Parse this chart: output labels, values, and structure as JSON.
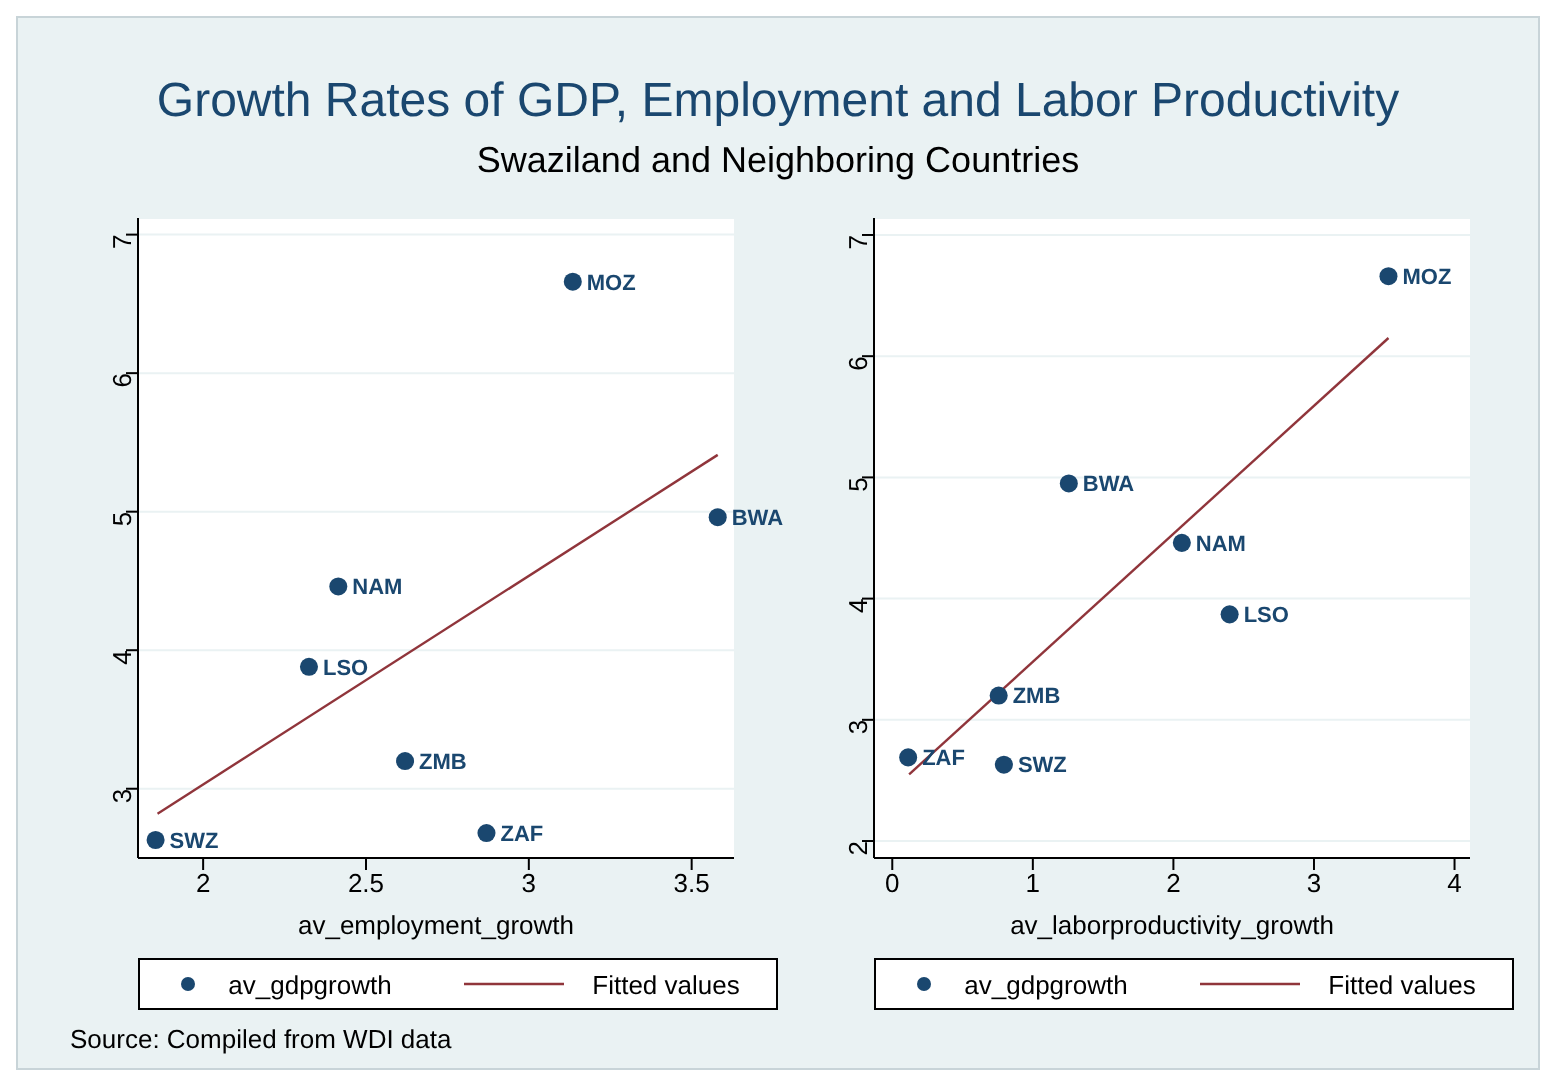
{
  "chart_data": [
    {
      "type": "scatter",
      "title": "Growth Rates of GDP, Employment and Labor Productivity",
      "subtitle": "Swaziland and Neighboring Countries",
      "xlabel": "av_employment_growth",
      "xlim": [
        1.8,
        3.63
      ],
      "xticks": [
        2,
        2.5,
        3,
        3.5
      ],
      "ylim": [
        2.5,
        7.12
      ],
      "yticks": [
        3,
        4,
        5,
        6,
        7
      ],
      "grid": "y",
      "legend": "bottom",
      "series": [
        {
          "name": "av_gdpgrowth",
          "marker": "circle",
          "color": "#1a476f",
          "x": [
            1.854,
            2.415,
            2.325,
            2.62,
            2.87,
            3.135,
            3.58
          ],
          "values": [
            2.63,
            4.46,
            3.88,
            3.2,
            2.68,
            6.66,
            4.96
          ]
        },
        {
          "name": "Fitted values",
          "type": "line",
          "color": "#90353b",
          "x": [
            1.86,
            3.58
          ],
          "values": [
            2.82,
            5.41
          ]
        }
      ],
      "annotations": [
        {
          "text": "SWZ",
          "x": 1.854,
          "y": 2.63
        },
        {
          "text": "NAM",
          "x": 2.415,
          "y": 4.46
        },
        {
          "text": "LSO",
          "x": 2.325,
          "y": 3.88
        },
        {
          "text": "ZMB",
          "x": 2.62,
          "y": 3.2
        },
        {
          "text": "ZAF",
          "x": 2.87,
          "y": 2.68
        },
        {
          "text": "MOZ",
          "x": 3.135,
          "y": 6.66
        },
        {
          "text": "BWA",
          "x": 3.58,
          "y": 4.96
        }
      ]
    },
    {
      "type": "scatter",
      "xlabel": "av_laborproductivity_growth",
      "xlim": [
        -0.13,
        4.11
      ],
      "xticks": [
        0,
        1,
        2,
        3,
        4
      ],
      "ylim": [
        1.86,
        7.14
      ],
      "yticks": [
        2,
        3,
        4,
        5,
        6,
        7
      ],
      "grid": "y",
      "legend": "bottom",
      "series": [
        {
          "name": "av_gdpgrowth",
          "marker": "circle",
          "color": "#1a476f",
          "x": [
            3.53,
            1.256,
            2.06,
            2.4,
            0.757,
            0.113,
            0.794
          ],
          "values": [
            6.66,
            4.95,
            4.46,
            3.87,
            3.2,
            2.69,
            2.63
          ]
        },
        {
          "name": "Fitted values",
          "type": "line",
          "color": "#90353b",
          "x": [
            0.12,
            3.53
          ],
          "values": [
            2.55,
            6.15
          ]
        }
      ],
      "annotations": [
        {
          "text": "MOZ",
          "x": 3.53,
          "y": 6.66
        },
        {
          "text": "BWA",
          "x": 1.256,
          "y": 4.95
        },
        {
          "text": "NAM",
          "x": 2.06,
          "y": 4.46
        },
        {
          "text": "LSO",
          "x": 2.4,
          "y": 3.87
        },
        {
          "text": "ZMB",
          "x": 0.757,
          "y": 3.2
        },
        {
          "text": "ZAF",
          "x": 0.113,
          "y": 2.69
        },
        {
          "text": "SWZ",
          "x": 0.794,
          "y": 2.63
        },
        "Source: Compiled from WDI data"
      ]
    }
  ]
}
